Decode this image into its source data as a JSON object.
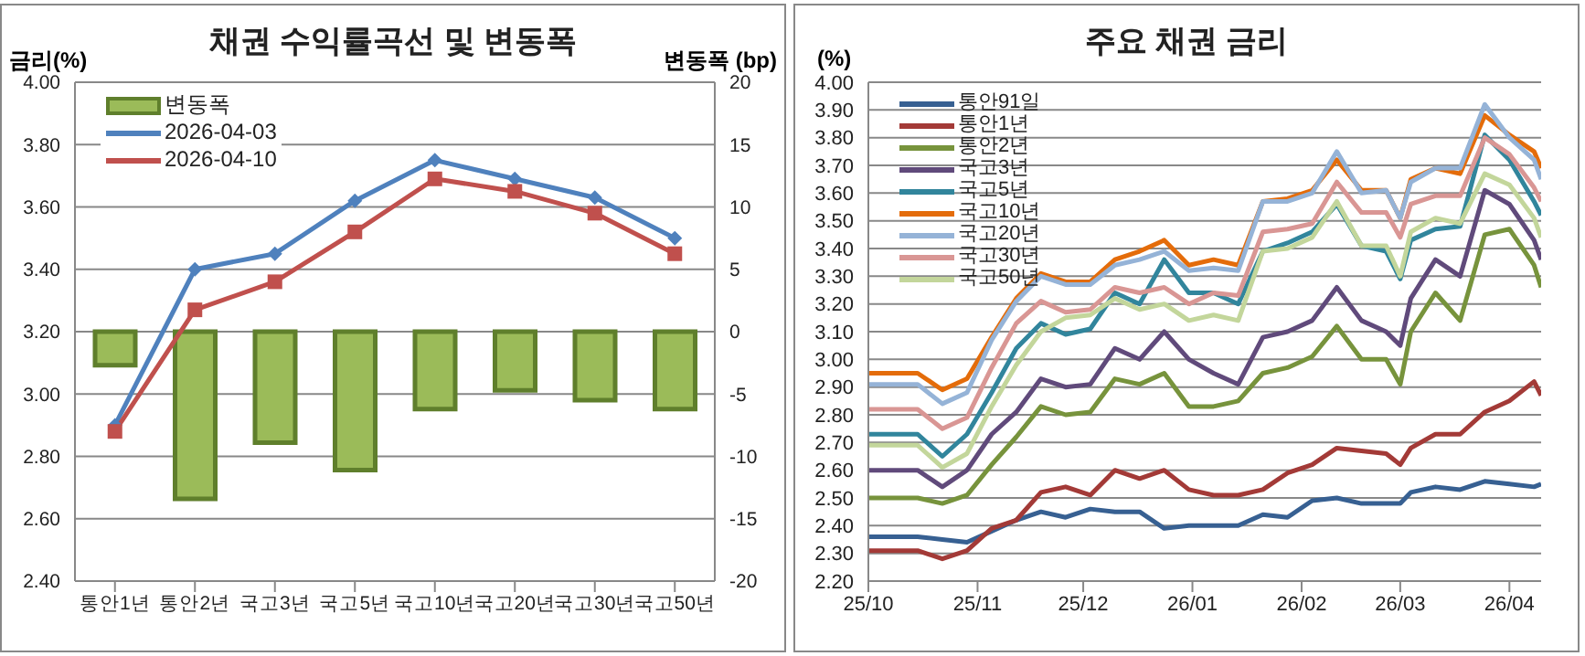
{
  "chart_data": [
    {
      "type": "line",
      "title": "채권 수익률곡선 및 변동폭",
      "ylabel": "금리(%)",
      "y2label": "변동폭 (bp)",
      "categories": [
        "통안1년",
        "통안2년",
        "국고3년",
        "국고5년",
        "국고10년",
        "국고20년",
        "국고30년",
        "국고50년"
      ],
      "series": [
        {
          "name": "변동폭",
          "type": "bar",
          "axis": "y2",
          "color": "#9bbb59",
          "values": [
            -2.7,
            -13.4,
            -8.9,
            -11.1,
            -6.2,
            -4.7,
            -5.5,
            -6.2
          ]
        },
        {
          "name": "2026-04-03",
          "marker": "diamond",
          "color": "#4f81bd",
          "values": [
            2.9,
            3.4,
            3.45,
            3.62,
            3.75,
            3.69,
            3.63,
            3.5
          ]
        },
        {
          "name": "2026-04-10",
          "marker": "square",
          "color": "#c0504d",
          "values": [
            2.88,
            3.27,
            3.36,
            3.52,
            3.69,
            3.65,
            3.58,
            3.45
          ]
        }
      ],
      "ylim": [
        2.4,
        4.0
      ],
      "yticks": [
        {
          "value": 2.4,
          "label": "2.40"
        },
        {
          "value": 2.6,
          "label": "2.60"
        },
        {
          "value": 2.8,
          "label": "2.80"
        },
        {
          "value": 3.0,
          "label": "3.00"
        },
        {
          "value": 3.2,
          "label": "3.20"
        },
        {
          "value": 3.4,
          "label": "3.40"
        },
        {
          "value": 3.6,
          "label": "3.60"
        },
        {
          "value": 3.8,
          "label": "3.80"
        },
        {
          "value": 4.0,
          "label": "4.00"
        }
      ],
      "y2lim": [
        -20,
        20
      ],
      "y2ticks": [
        -20,
        -15,
        -10,
        -5,
        0,
        5,
        10,
        15,
        20
      ],
      "grid": "y",
      "legend": "top left"
    },
    {
      "type": "line",
      "title": "주요 채권 금리",
      "ylabel": "(%)",
      "marker": "none",
      "x": [
        "2025-10-01",
        "2025-10-08",
        "2025-10-15",
        "2025-10-22",
        "2025-10-29",
        "2025-11-05",
        "2025-11-12",
        "2025-11-19",
        "2025-11-26",
        "2025-12-03",
        "2025-12-10",
        "2025-12-17",
        "2025-12-24",
        "2025-12-31",
        "2026-01-07",
        "2026-01-14",
        "2026-01-21",
        "2026-01-28",
        "2026-02-04",
        "2026-02-11",
        "2026-02-18",
        "2026-02-25",
        "2026-03-01",
        "2026-03-04",
        "2026-03-11",
        "2026-03-18",
        "2026-03-25",
        "2026-04-01",
        "2026-04-08",
        "2026-04-10"
      ],
      "series": [
        {
          "name": "통안91일",
          "color": "#376092",
          "values": [
            2.36,
            2.36,
            2.36,
            2.35,
            2.34,
            2.38,
            2.42,
            2.45,
            2.43,
            2.46,
            2.45,
            2.45,
            2.39,
            2.4,
            2.4,
            2.4,
            2.44,
            2.43,
            2.49,
            2.5,
            2.48,
            2.48,
            2.48,
            2.52,
            2.54,
            2.53,
            2.56,
            2.55,
            2.54,
            2.55
          ]
        },
        {
          "name": "통안1년",
          "color": "#a33a37",
          "values": [
            2.31,
            2.31,
            2.31,
            2.28,
            2.31,
            2.39,
            2.42,
            2.52,
            2.54,
            2.51,
            2.6,
            2.57,
            2.6,
            2.53,
            2.51,
            2.51,
            2.53,
            2.59,
            2.62,
            2.68,
            2.67,
            2.66,
            2.62,
            2.68,
            2.73,
            2.73,
            2.81,
            2.85,
            2.92,
            2.87
          ]
        },
        {
          "name": "통안2년",
          "color": "#77933c",
          "values": [
            2.5,
            2.5,
            2.5,
            2.48,
            2.51,
            2.62,
            2.72,
            2.83,
            2.8,
            2.81,
            2.93,
            2.91,
            2.95,
            2.83,
            2.83,
            2.85,
            2.95,
            2.97,
            3.01,
            3.12,
            3.0,
            3.0,
            2.91,
            3.1,
            3.24,
            3.14,
            3.45,
            3.47,
            3.34,
            3.26
          ]
        },
        {
          "name": "국고3년",
          "color": "#604a7b",
          "values": [
            2.6,
            2.6,
            2.6,
            2.54,
            2.6,
            2.73,
            2.81,
            2.93,
            2.9,
            2.91,
            3.04,
            3.0,
            3.1,
            3.0,
            2.95,
            2.91,
            3.08,
            3.1,
            3.14,
            3.26,
            3.14,
            3.1,
            3.05,
            3.22,
            3.36,
            3.3,
            3.61,
            3.56,
            3.43,
            3.36
          ]
        },
        {
          "name": "국고5년",
          "color": "#31859c",
          "values": [
            2.73,
            2.73,
            2.73,
            2.65,
            2.73,
            2.88,
            3.04,
            3.13,
            3.09,
            3.11,
            3.24,
            3.2,
            3.36,
            3.24,
            3.24,
            3.2,
            3.39,
            3.42,
            3.46,
            3.56,
            3.41,
            3.39,
            3.29,
            3.43,
            3.47,
            3.48,
            3.81,
            3.72,
            3.57,
            3.52
          ]
        },
        {
          "name": "국고10년",
          "color": "#e46c0a",
          "values": [
            2.95,
            2.95,
            2.95,
            2.89,
            2.93,
            3.08,
            3.22,
            3.31,
            3.28,
            3.28,
            3.36,
            3.39,
            3.43,
            3.34,
            3.36,
            3.34,
            3.57,
            3.58,
            3.61,
            3.72,
            3.61,
            3.61,
            3.51,
            3.65,
            3.69,
            3.67,
            3.88,
            3.81,
            3.75,
            3.69
          ]
        },
        {
          "name": "국고20년",
          "color": "#95b3d7",
          "values": [
            2.91,
            2.91,
            2.91,
            2.84,
            2.88,
            3.07,
            3.21,
            3.3,
            3.27,
            3.27,
            3.34,
            3.36,
            3.39,
            3.32,
            3.33,
            3.32,
            3.57,
            3.57,
            3.6,
            3.75,
            3.6,
            3.61,
            3.51,
            3.64,
            3.69,
            3.69,
            3.92,
            3.8,
            3.72,
            3.65
          ]
        },
        {
          "name": "국고30년",
          "color": "#d99694",
          "values": [
            2.82,
            2.82,
            2.82,
            2.75,
            2.79,
            2.97,
            3.13,
            3.21,
            3.17,
            3.18,
            3.26,
            3.24,
            3.26,
            3.2,
            3.24,
            3.23,
            3.46,
            3.47,
            3.49,
            3.64,
            3.53,
            3.53,
            3.44,
            3.56,
            3.59,
            3.59,
            3.8,
            3.74,
            3.62,
            3.57
          ]
        },
        {
          "name": "국고50년",
          "color": "#c3d69b",
          "values": [
            2.69,
            2.69,
            2.69,
            2.61,
            2.66,
            2.83,
            2.98,
            3.1,
            3.15,
            3.16,
            3.22,
            3.18,
            3.2,
            3.14,
            3.16,
            3.14,
            3.39,
            3.4,
            3.44,
            3.57,
            3.41,
            3.41,
            3.3,
            3.46,
            3.51,
            3.49,
            3.67,
            3.63,
            3.51,
            3.44
          ]
        }
      ],
      "xlim": [
        "2025-10-01",
        "2026-04-10"
      ],
      "xticks": [
        {
          "value": "2025-10-01",
          "label": "25/10"
        },
        {
          "value": "2025-11-01",
          "label": "25/11"
        },
        {
          "value": "2025-12-01",
          "label": "25/12"
        },
        {
          "value": "2026-01-01",
          "label": "26/01"
        },
        {
          "value": "2026-02-01",
          "label": "26/02"
        },
        {
          "value": "2026-03-01",
          "label": "26/03"
        },
        {
          "value": "2026-04-01",
          "label": "26/04"
        }
      ],
      "ylim": [
        2.2,
        4.0
      ],
      "yticks": [
        {
          "value": 2.2,
          "label": "2.20"
        },
        {
          "value": 2.3,
          "label": "2.30"
        },
        {
          "value": 2.4,
          "label": "2.40"
        },
        {
          "value": 2.5,
          "label": "2.50"
        },
        {
          "value": 2.6,
          "label": "2.60"
        },
        {
          "value": 2.7,
          "label": "2.70"
        },
        {
          "value": 2.8,
          "label": "2.80"
        },
        {
          "value": 2.9,
          "label": "2.90"
        },
        {
          "value": 3.0,
          "label": "3.00"
        },
        {
          "value": 3.1,
          "label": "3.10"
        },
        {
          "value": 3.2,
          "label": "3.20"
        },
        {
          "value": 3.3,
          "label": "3.30"
        },
        {
          "value": 3.4,
          "label": "3.40"
        },
        {
          "value": 3.5,
          "label": "3.50"
        },
        {
          "value": 3.6,
          "label": "3.60"
        },
        {
          "value": 3.7,
          "label": "3.70"
        },
        {
          "value": 3.8,
          "label": "3.80"
        },
        {
          "value": 3.9,
          "label": "3.90"
        },
        {
          "value": 4.0,
          "label": "4.00"
        }
      ],
      "grid": "y",
      "legend": "top left"
    }
  ]
}
